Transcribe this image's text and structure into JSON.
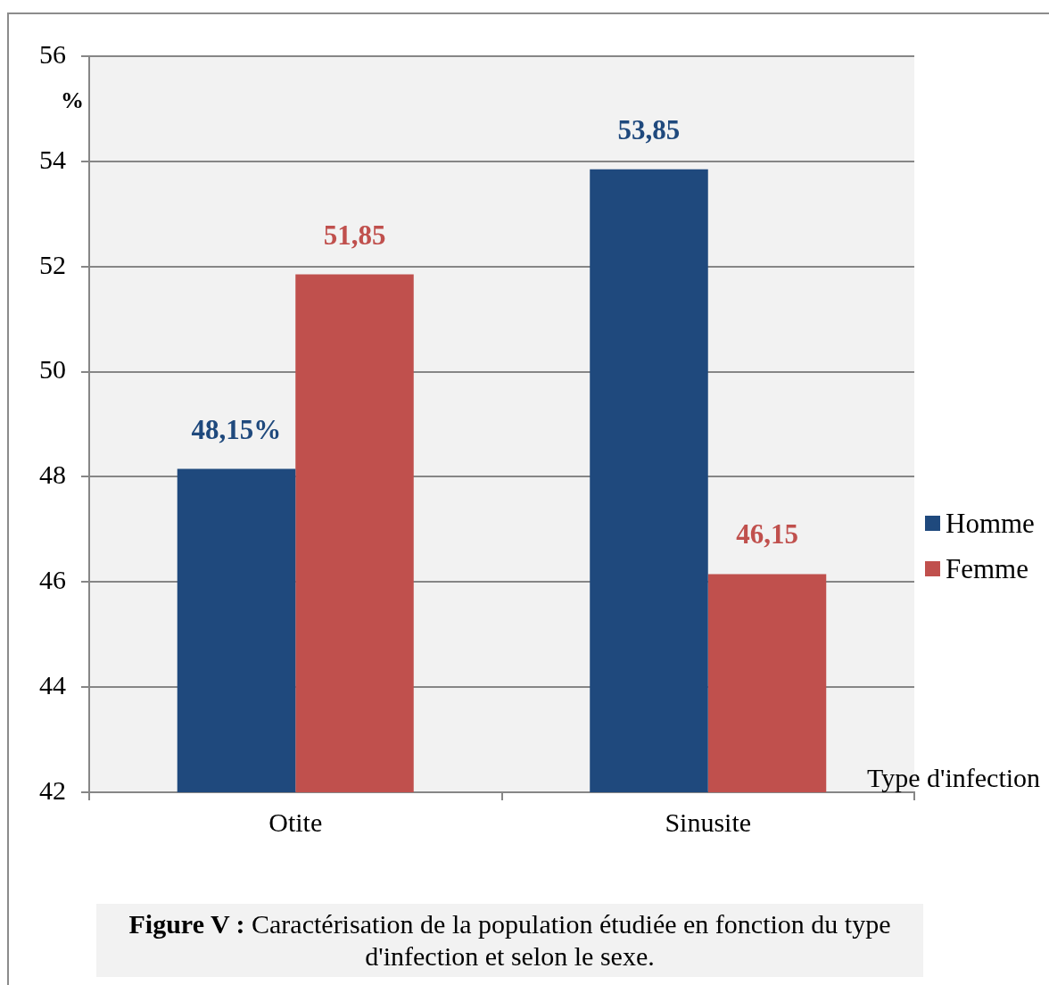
{
  "chart_data": {
    "type": "bar",
    "categories": [
      "Otite",
      "Sinusite"
    ],
    "series": [
      {
        "name": "Homme",
        "color": "#1f497d",
        "values": [
          48.15,
          53.85
        ],
        "value_labels": [
          "48,15%",
          "53,85"
        ]
      },
      {
        "name": "Femme",
        "color": "#c0504d",
        "values": [
          51.85,
          46.15
        ],
        "value_labels": [
          "51,85",
          "46,15"
        ]
      }
    ],
    "ylabel": "%",
    "xlabel": "Type d'infection",
    "ylim": [
      42,
      56
    ],
    "yticks": [
      42,
      44,
      46,
      48,
      50,
      52,
      54,
      56
    ],
    "grid": "y",
    "legend": "right",
    "annotations": [
      "Figure V : Caractérisation de la population étudiée en fonction du type d'infection et selon le sexe."
    ]
  }
}
